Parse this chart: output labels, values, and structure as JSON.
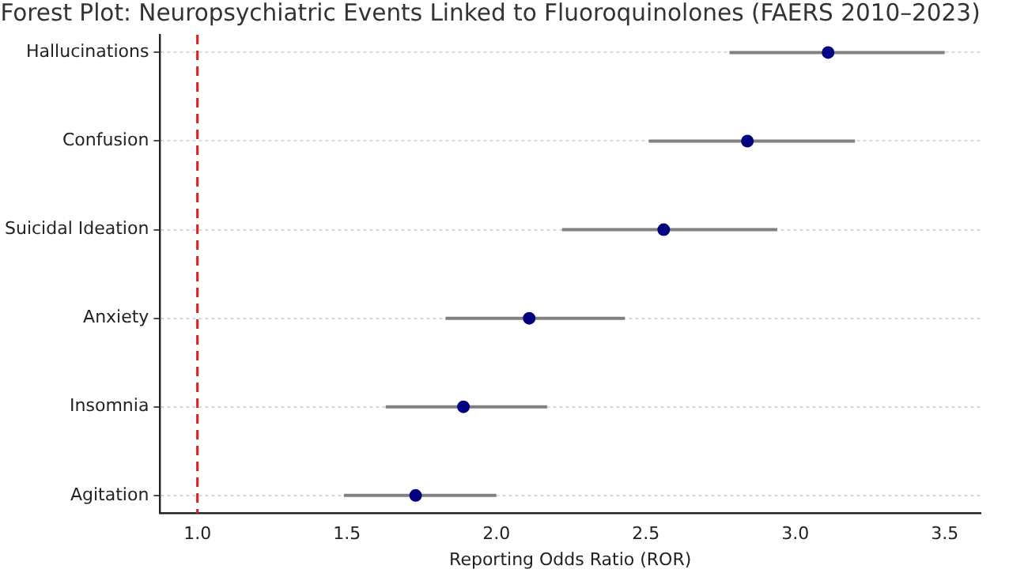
{
  "chart_data": {
    "type": "scatter",
    "title": "Forest Plot: Neuropsychiatric Events Linked to Fluoroquinolones (FAERS 2010–2023)",
    "xlabel": "Reporting Odds Ratio (ROR)",
    "categories": [
      "Hallucinations",
      "Confusion",
      "Suicidal Ideation",
      "Anxiety",
      "Insomnia",
      "Agitation"
    ],
    "values": [
      3.11,
      2.84,
      2.56,
      2.11,
      1.89,
      1.73
    ],
    "errors": [
      [
        2.78,
        3.5
      ],
      [
        2.51,
        3.2
      ],
      [
        2.22,
        2.94
      ],
      [
        1.83,
        2.43
      ],
      [
        1.63,
        2.17
      ],
      [
        1.49,
        2.0
      ]
    ],
    "color": "#000080",
    "orientation": "horizontal",
    "xlim": [
      0.875,
      3.62
    ],
    "xticks": [
      {
        "value": 1,
        "label": "1.0"
      },
      {
        "value": 1.5,
        "label": "1.5"
      },
      {
        "value": 2,
        "label": "2.0"
      },
      {
        "value": 2.5,
        "label": "2.5"
      },
      {
        "value": 3,
        "label": "3.0"
      },
      {
        "value": 3.5,
        "label": "3.5"
      }
    ],
    "ref_lines": [
      {
        "axis": "x",
        "value": 1.0,
        "color": "#e02020",
        "line_style": "dashed"
      }
    ],
    "grid": "y",
    "marker": "circle",
    "legend": false
  }
}
